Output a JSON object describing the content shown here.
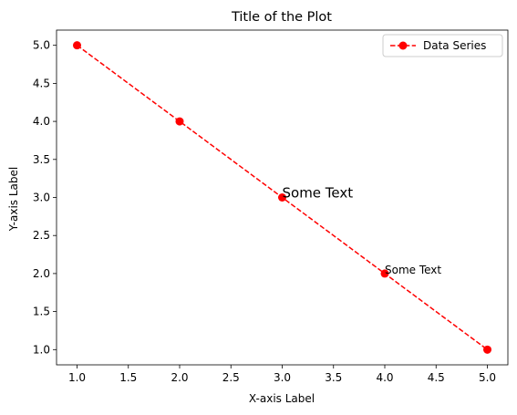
{
  "chart_data": {
    "type": "line",
    "title": "Title of the Plot",
    "xlabel": "X-axis Label",
    "ylabel": "Y-axis Label",
    "x": [
      1,
      2,
      3,
      4,
      5
    ],
    "series": [
      {
        "name": "Data Series",
        "values": [
          5,
          4,
          3,
          2,
          1
        ],
        "color": "#ff0000",
        "line_style": "dashed",
        "marker": "circle"
      }
    ],
    "xlim": [
      0.8,
      5.2
    ],
    "ylim": [
      0.8,
      5.2
    ],
    "xticks": [
      1.0,
      1.5,
      2.0,
      2.5,
      3.0,
      3.5,
      4.0,
      4.5,
      5.0
    ],
    "yticks": [
      1.0,
      1.5,
      2.0,
      2.5,
      3.0,
      3.5,
      4.0,
      4.5,
      5.0
    ],
    "xtick_labels": [
      "1.0",
      "1.5",
      "2.0",
      "2.5",
      "3.0",
      "3.5",
      "4.0",
      "4.5",
      "5.0"
    ],
    "ytick_labels": [
      "1.0",
      "1.5",
      "2.0",
      "2.5",
      "3.0",
      "3.5",
      "4.0",
      "4.5",
      "5.0"
    ],
    "grid": false,
    "legend_position": "top-right",
    "annotations": [
      {
        "text": "Some Text",
        "x": 3,
        "y": 3,
        "size": "large"
      },
      {
        "text": "Some Text",
        "x": 4,
        "y": 2,
        "size": "small"
      }
    ]
  }
}
